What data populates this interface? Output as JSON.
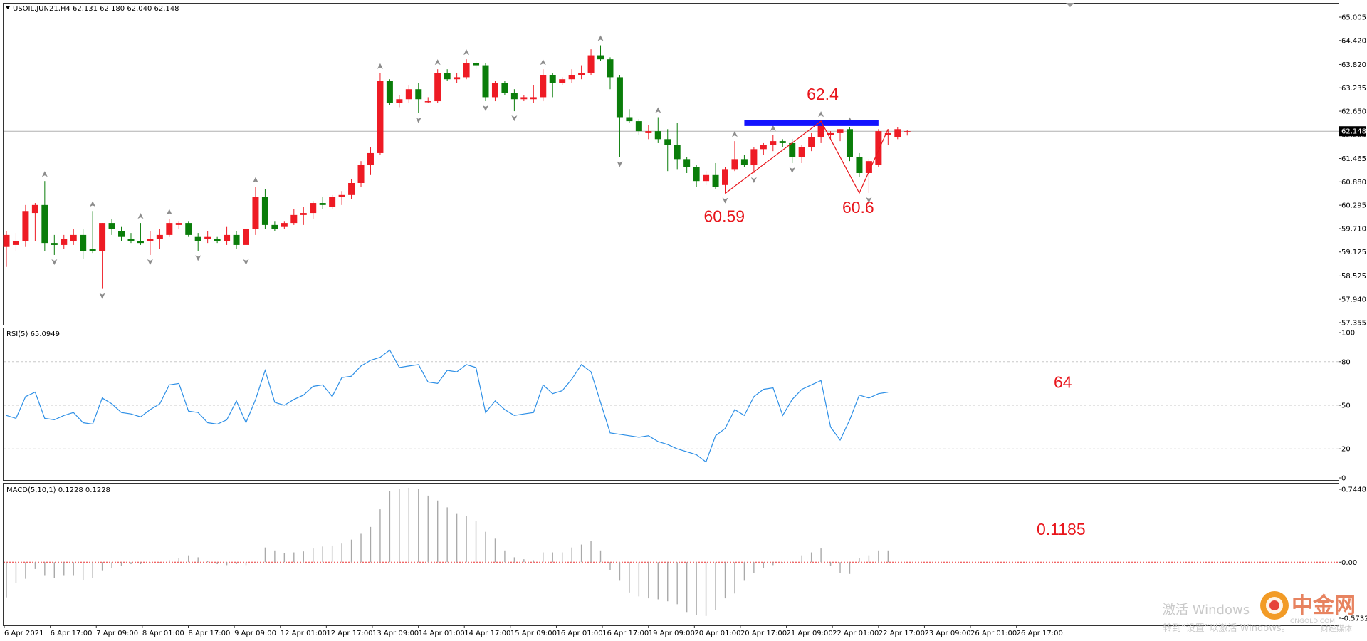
{
  "chart_data": [
    {
      "type": "candlestick",
      "title": "USOIL.JUN21,H4",
      "ohlc_readout": "62.131 62.180 62.040 62.148",
      "last_price": 62.148,
      "last_price_label": "62.148",
      "ylim": [
        57.355,
        65.005
      ],
      "y_ticks": [
        "65.005",
        "64.420",
        "63.820",
        "63.235",
        "62.650",
        "62.065",
        "61.465",
        "60.880",
        "60.295",
        "59.710",
        "59.125",
        "58.525",
        "57.940",
        "57.355"
      ],
      "x_tick_labels": [
        "6 Apr 2021",
        "6 Apr 17:00",
        "7 Apr 09:00",
        "8 Apr 01:00",
        "8 Apr 17:00",
        "9 Apr 09:00",
        "12 Apr 01:00",
        "12 Apr 17:00",
        "13 Apr 09:00",
        "14 Apr 01:00",
        "14 Apr 17:00",
        "15 Apr 09:00",
        "16 Apr 01:00",
        "16 Apr 17:00",
        "19 Apr 09:00",
        "20 Apr 01:00",
        "20 Apr 17:00",
        "21 Apr 09:00",
        "22 Apr 01:00",
        "22 Apr 17:00",
        "23 Apr 09:00",
        "26 Apr 01:00",
        "26 Apr 17:00"
      ],
      "candles": [
        {
          "o": 59.25,
          "h": 59.65,
          "l": 58.75,
          "c": 59.55
        },
        {
          "o": 59.3,
          "h": 59.6,
          "l": 59.15,
          "c": 59.4
        },
        {
          "o": 59.4,
          "h": 60.3,
          "l": 59.25,
          "c": 60.15
        },
        {
          "o": 60.1,
          "h": 60.35,
          "l": 59.4,
          "c": 60.3
        },
        {
          "o": 60.3,
          "h": 60.9,
          "l": 59.15,
          "c": 59.35
        },
        {
          "o": 59.35,
          "h": 59.55,
          "l": 59.05,
          "c": 59.3
        },
        {
          "o": 59.3,
          "h": 59.55,
          "l": 59.2,
          "c": 59.45
        },
        {
          "o": 59.4,
          "h": 59.7,
          "l": 59.3,
          "c": 59.55
        },
        {
          "o": 59.55,
          "h": 59.7,
          "l": 58.95,
          "c": 59.15
        },
        {
          "o": 59.2,
          "h": 60.15,
          "l": 59.1,
          "c": 59.15
        },
        {
          "o": 59.15,
          "h": 59.85,
          "l": 58.2,
          "c": 59.85
        },
        {
          "o": 59.85,
          "h": 59.95,
          "l": 59.55,
          "c": 59.7
        },
        {
          "o": 59.65,
          "h": 59.75,
          "l": 59.4,
          "c": 59.5
        },
        {
          "o": 59.45,
          "h": 59.6,
          "l": 59.35,
          "c": 59.4
        },
        {
          "o": 59.4,
          "h": 59.85,
          "l": 59.3,
          "c": 59.35
        },
        {
          "o": 59.4,
          "h": 59.65,
          "l": 59.05,
          "c": 59.45
        },
        {
          "o": 59.45,
          "h": 59.7,
          "l": 59.2,
          "c": 59.55
        },
        {
          "o": 59.55,
          "h": 59.95,
          "l": 59.5,
          "c": 59.85
        },
        {
          "o": 59.8,
          "h": 59.9,
          "l": 59.7,
          "c": 59.85
        },
        {
          "o": 59.85,
          "h": 59.9,
          "l": 59.5,
          "c": 59.55
        },
        {
          "o": 59.5,
          "h": 59.6,
          "l": 59.15,
          "c": 59.4
        },
        {
          "o": 59.45,
          "h": 59.65,
          "l": 59.35,
          "c": 59.5
        },
        {
          "o": 59.45,
          "h": 59.5,
          "l": 59.35,
          "c": 59.4
        },
        {
          "o": 59.4,
          "h": 59.75,
          "l": 59.3,
          "c": 59.55
        },
        {
          "o": 59.55,
          "h": 59.65,
          "l": 59.2,
          "c": 59.3
        },
        {
          "o": 59.3,
          "h": 59.8,
          "l": 59.05,
          "c": 59.7
        },
        {
          "o": 59.7,
          "h": 60.75,
          "l": 59.55,
          "c": 60.5
        },
        {
          "o": 60.5,
          "h": 60.7,
          "l": 59.7,
          "c": 59.8
        },
        {
          "o": 59.8,
          "h": 59.9,
          "l": 59.65,
          "c": 59.7
        },
        {
          "o": 59.75,
          "h": 59.9,
          "l": 59.7,
          "c": 59.85
        },
        {
          "o": 59.85,
          "h": 60.2,
          "l": 59.8,
          "c": 60.05
        },
        {
          "o": 60.05,
          "h": 60.25,
          "l": 59.8,
          "c": 60.1
        },
        {
          "o": 60.1,
          "h": 60.4,
          "l": 59.95,
          "c": 60.35
        },
        {
          "o": 60.35,
          "h": 60.5,
          "l": 60.2,
          "c": 60.3
        },
        {
          "o": 60.25,
          "h": 60.55,
          "l": 60.2,
          "c": 60.5
        },
        {
          "o": 60.5,
          "h": 60.65,
          "l": 60.3,
          "c": 60.55
        },
        {
          "o": 60.55,
          "h": 60.95,
          "l": 60.45,
          "c": 60.85
        },
        {
          "o": 60.85,
          "h": 61.4,
          "l": 60.75,
          "c": 61.3
        },
        {
          "o": 61.3,
          "h": 61.75,
          "l": 61.05,
          "c": 61.6
        },
        {
          "o": 61.6,
          "h": 63.6,
          "l": 61.55,
          "c": 63.4
        },
        {
          "o": 63.4,
          "h": 63.45,
          "l": 62.8,
          "c": 62.85
        },
        {
          "o": 62.85,
          "h": 63.05,
          "l": 62.75,
          "c": 62.95
        },
        {
          "o": 62.95,
          "h": 63.3,
          "l": 62.85,
          "c": 63.2
        },
        {
          "o": 63.2,
          "h": 63.35,
          "l": 62.6,
          "c": 62.95
        },
        {
          "o": 62.9,
          "h": 63.0,
          "l": 62.85,
          "c": 62.9
        },
        {
          "o": 62.9,
          "h": 63.7,
          "l": 62.85,
          "c": 63.6
        },
        {
          "o": 63.6,
          "h": 63.7,
          "l": 63.4,
          "c": 63.45
        },
        {
          "o": 63.45,
          "h": 63.6,
          "l": 63.35,
          "c": 63.5
        },
        {
          "o": 63.5,
          "h": 63.95,
          "l": 63.45,
          "c": 63.85
        },
        {
          "o": 63.85,
          "h": 63.9,
          "l": 63.7,
          "c": 63.8
        },
        {
          "o": 63.8,
          "h": 63.85,
          "l": 62.9,
          "c": 63.0
        },
        {
          "o": 63.0,
          "h": 63.4,
          "l": 62.9,
          "c": 63.35
        },
        {
          "o": 63.35,
          "h": 63.4,
          "l": 63.05,
          "c": 63.1
        },
        {
          "o": 63.1,
          "h": 63.2,
          "l": 62.65,
          "c": 62.95
        },
        {
          "o": 62.95,
          "h": 63.05,
          "l": 62.9,
          "c": 63.0
        },
        {
          "o": 62.95,
          "h": 63.3,
          "l": 62.85,
          "c": 63.0
        },
        {
          "o": 63.0,
          "h": 63.7,
          "l": 62.9,
          "c": 63.55
        },
        {
          "o": 63.55,
          "h": 63.6,
          "l": 63.0,
          "c": 63.35
        },
        {
          "o": 63.35,
          "h": 63.5,
          "l": 63.3,
          "c": 63.45
        },
        {
          "o": 63.45,
          "h": 63.7,
          "l": 63.35,
          "c": 63.55
        },
        {
          "o": 63.55,
          "h": 63.8,
          "l": 63.45,
          "c": 63.6
        },
        {
          "o": 63.6,
          "h": 64.2,
          "l": 63.55,
          "c": 64.05
        },
        {
          "o": 64.05,
          "h": 64.3,
          "l": 63.9,
          "c": 63.95
        },
        {
          "o": 63.95,
          "h": 64.0,
          "l": 63.2,
          "c": 63.5
        },
        {
          "o": 63.5,
          "h": 63.55,
          "l": 61.5,
          "c": 62.5
        },
        {
          "o": 62.5,
          "h": 62.7,
          "l": 62.35,
          "c": 62.4
        },
        {
          "o": 62.4,
          "h": 62.45,
          "l": 62.05,
          "c": 62.15
        },
        {
          "o": 62.1,
          "h": 62.3,
          "l": 61.95,
          "c": 62.15
        },
        {
          "o": 62.15,
          "h": 62.5,
          "l": 61.85,
          "c": 61.95
        },
        {
          "o": 61.95,
          "h": 62.2,
          "l": 61.15,
          "c": 61.8
        },
        {
          "o": 61.8,
          "h": 62.35,
          "l": 61.2,
          "c": 61.45
        },
        {
          "o": 61.45,
          "h": 61.5,
          "l": 61.1,
          "c": 61.25
        },
        {
          "o": 61.25,
          "h": 61.3,
          "l": 60.75,
          "c": 60.9
        },
        {
          "o": 60.9,
          "h": 61.15,
          "l": 60.8,
          "c": 61.05
        },
        {
          "o": 61.05,
          "h": 61.35,
          "l": 60.7,
          "c": 60.75
        },
        {
          "o": 60.8,
          "h": 61.25,
          "l": 60.59,
          "c": 61.2
        },
        {
          "o": 61.2,
          "h": 61.9,
          "l": 61.15,
          "c": 61.45
        },
        {
          "o": 61.45,
          "h": 61.55,
          "l": 61.25,
          "c": 61.3
        },
        {
          "o": 61.3,
          "h": 61.75,
          "l": 61.1,
          "c": 61.7
        },
        {
          "o": 61.7,
          "h": 61.85,
          "l": 61.55,
          "c": 61.8
        },
        {
          "o": 61.8,
          "h": 62.05,
          "l": 61.65,
          "c": 61.9
        },
        {
          "o": 61.9,
          "h": 61.95,
          "l": 61.75,
          "c": 61.85
        },
        {
          "o": 61.85,
          "h": 61.95,
          "l": 61.35,
          "c": 61.5
        },
        {
          "o": 61.5,
          "h": 61.8,
          "l": 61.35,
          "c": 61.75
        },
        {
          "o": 61.75,
          "h": 62.1,
          "l": 61.65,
          "c": 62.0
        },
        {
          "o": 62.0,
          "h": 62.4,
          "l": 61.85,
          "c": 62.35
        },
        {
          "o": 62.05,
          "h": 62.15,
          "l": 61.95,
          "c": 62.1
        },
        {
          "o": 62.1,
          "h": 62.2,
          "l": 61.9,
          "c": 62.2
        },
        {
          "o": 62.2,
          "h": 62.25,
          "l": 61.4,
          "c": 61.5
        },
        {
          "o": 61.5,
          "h": 61.6,
          "l": 61.0,
          "c": 61.1
        },
        {
          "o": 61.1,
          "h": 61.45,
          "l": 60.6,
          "c": 61.4
        },
        {
          "o": 61.3,
          "h": 62.2,
          "l": 61.25,
          "c": 62.15
        },
        {
          "o": 62.05,
          "h": 62.2,
          "l": 61.8,
          "c": 62.1
        },
        {
          "o": 62.0,
          "h": 62.25,
          "l": 61.95,
          "c": 62.2
        },
        {
          "o": 62.131,
          "h": 62.18,
          "l": 62.04,
          "c": 62.148
        }
      ],
      "annotations": [
        {
          "text": "62.4",
          "price": 62.4
        },
        {
          "text": "60.59",
          "price": 60.59
        },
        {
          "text": "60.6",
          "price": 60.6
        }
      ],
      "resistance_level": 62.35,
      "colors": {
        "up": "#ee1b24",
        "down": "#0a7d0a",
        "level": "#1313ff",
        "annotation": "#e8151b"
      }
    },
    {
      "type": "line",
      "title": "RSI(5) 65.0949",
      "ylim": [
        0,
        100
      ],
      "y_ticks": [
        "100",
        "80",
        "50",
        "20",
        "0"
      ],
      "levels": [
        80,
        50,
        20
      ],
      "annotation": "64",
      "values": [
        43,
        41,
        56,
        59,
        41,
        40,
        43,
        45,
        38,
        37,
        55,
        51,
        45,
        44,
        42,
        47,
        51,
        64,
        65,
        46,
        45,
        38,
        37,
        40,
        53,
        38,
        54,
        74,
        52,
        50,
        54,
        57,
        63,
        64,
        56,
        69,
        70,
        77,
        81,
        83,
        88,
        76,
        77,
        78,
        66,
        65,
        74,
        73,
        78,
        76,
        45,
        53,
        47,
        43,
        44,
        45,
        64,
        58,
        60,
        68,
        78,
        73,
        52,
        31,
        30,
        29,
        28,
        29,
        25,
        23,
        20,
        18,
        16,
        11,
        29,
        34,
        47,
        43,
        56,
        61,
        62,
        43,
        54,
        61,
        64,
        67,
        35,
        26,
        40,
        57,
        55,
        58,
        59
      ]
    },
    {
      "type": "bar",
      "title": "MACD(5,10,1) 0.1228 0.1228",
      "ylim": [
        -0.5732,
        0.7448
      ],
      "y_ticks": [
        "0.7448",
        "0.00",
        "-0.5732"
      ],
      "annotation": "0.1185",
      "values": [
        -0.36,
        -0.21,
        -0.17,
        -0.07,
        -0.14,
        -0.16,
        -0.14,
        -0.14,
        -0.18,
        -0.16,
        -0.09,
        -0.06,
        -0.04,
        -0.02,
        -0.02,
        -0.01,
        -0.01,
        0.02,
        0.04,
        0.07,
        0.05,
        0.01,
        -0.02,
        -0.03,
        -0.02,
        -0.03,
        -0.01,
        0.15,
        0.12,
        0.09,
        0.1,
        0.11,
        0.14,
        0.16,
        0.17,
        0.19,
        0.23,
        0.29,
        0.36,
        0.54,
        0.73,
        0.75,
        0.76,
        0.75,
        0.68,
        0.63,
        0.56,
        0.5,
        0.47,
        0.42,
        0.31,
        0.24,
        0.12,
        0.05,
        0.03,
        0.02,
        0.1,
        0.1,
        0.1,
        0.15,
        0.18,
        0.22,
        0.12,
        -0.08,
        -0.19,
        -0.31,
        -0.35,
        -0.37,
        -0.38,
        -0.4,
        -0.43,
        -0.51,
        -0.54,
        -0.55,
        -0.49,
        -0.37,
        -0.32,
        -0.19,
        -0.11,
        -0.06,
        -0.03,
        -0.01,
        0.01,
        0.07,
        0.1,
        0.14,
        -0.04,
        -0.11,
        -0.12,
        0.04,
        0.07,
        0.12,
        0.12
      ]
    }
  ],
  "watermark": {
    "line1": "激活 Windows",
    "line2": "转到“设置”以激活 Windows。",
    "brand": "中金网",
    "brand_site": "CNGOLD.COM",
    "brand_sub": "财经媒体"
  }
}
